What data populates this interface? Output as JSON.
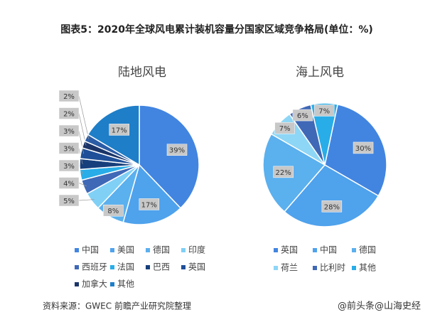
{
  "title": "图表5：2020年全球风电累计装机容量分国家区域竞争格局(单位：%)",
  "source": "资料来源：GWEC 前瞻产业研究院整理",
  "watermark": "@前头条@山海史经",
  "chart_data": [
    {
      "type": "pie",
      "title": "陆地风电",
      "categories": [
        "中国",
        "美国",
        "德国",
        "印度",
        "西班牙",
        "法国",
        "巴西",
        "英国",
        "加拿大",
        null,
        "其他"
      ],
      "values": [
        39,
        17,
        8,
        5,
        4,
        3,
        3,
        3,
        2,
        2,
        17
      ],
      "value_labels": [
        "39%",
        "17%",
        "8%",
        "5%",
        "4%",
        "3%",
        "3%",
        "3%",
        "2%",
        "2%",
        "17%"
      ],
      "colors": [
        "#4285e0",
        "#4fa2ec",
        "#5bb0ee",
        "#80d0f6",
        "#3f68b6",
        "#28ade8",
        "#173f7c",
        "#1f4f98",
        "#1b3569",
        "#2b5ca6",
        "#1e7ec8"
      ]
    },
    {
      "type": "pie",
      "title": "海上风电",
      "categories": [
        "英国",
        "中国",
        "德国",
        "荷兰",
        "比利时",
        "其他"
      ],
      "values": [
        30,
        28,
        22,
        7,
        6,
        7
      ],
      "value_labels": [
        "30%",
        "28%",
        "22%",
        "7%",
        "6%",
        "7%"
      ],
      "colors": [
        "#4285e0",
        "#4fa2ec",
        "#5bb0ee",
        "#8ed6f6",
        "#3f68b6",
        "#28ade8"
      ]
    }
  ]
}
